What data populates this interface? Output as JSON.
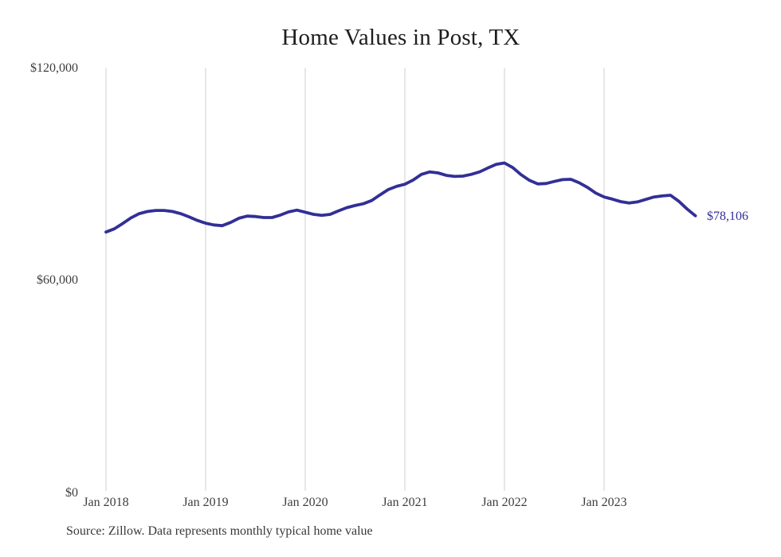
{
  "chart_data": {
    "type": "line",
    "title": "Home Values in Post, TX",
    "x": [
      "Jan 2018",
      "Feb 2018",
      "Mar 2018",
      "Apr 2018",
      "May 2018",
      "Jun 2018",
      "Jul 2018",
      "Aug 2018",
      "Sep 2018",
      "Oct 2018",
      "Nov 2018",
      "Dec 2018",
      "Jan 2019",
      "Feb 2019",
      "Mar 2019",
      "Apr 2019",
      "May 2019",
      "Jun 2019",
      "Jul 2019",
      "Aug 2019",
      "Sep 2019",
      "Oct 2019",
      "Nov 2019",
      "Dec 2019",
      "Jan 2020",
      "Feb 2020",
      "Mar 2020",
      "Apr 2020",
      "May 2020",
      "Jun 2020",
      "Jul 2020",
      "Aug 2020",
      "Sep 2020",
      "Oct 2020",
      "Nov 2020",
      "Dec 2020",
      "Jan 2021",
      "Feb 2021",
      "Mar 2021",
      "Apr 2021",
      "May 2021",
      "Jun 2021",
      "Jul 2021",
      "Aug 2021",
      "Sep 2021",
      "Oct 2021",
      "Nov 2021",
      "Dec 2021",
      "Jan 2022",
      "Feb 2022",
      "Mar 2022",
      "Apr 2022",
      "May 2022",
      "Jun 2022",
      "Jul 2022",
      "Aug 2022",
      "Sep 2022",
      "Oct 2022",
      "Nov 2022",
      "Dec 2022",
      "Jan 2023",
      "Feb 2023",
      "Mar 2023",
      "Apr 2023",
      "May 2023",
      "Jun 2023",
      "Jul 2023",
      "Aug 2023",
      "Sep 2023",
      "Oct 2023",
      "Nov 2023",
      "Dec 2023"
    ],
    "series": [
      {
        "name": "Typical home value",
        "values": [
          73500,
          74400,
          75900,
          77500,
          78700,
          79300,
          79600,
          79600,
          79300,
          78700,
          77800,
          76800,
          76000,
          75500,
          75300,
          76200,
          77400,
          78000,
          77900,
          77600,
          77600,
          78300,
          79200,
          79700,
          79100,
          78500,
          78200,
          78500,
          79500,
          80400,
          81000,
          81500,
          82400,
          84000,
          85500,
          86400,
          87000,
          88200,
          89800,
          90500,
          90200,
          89500,
          89200,
          89300,
          89800,
          90500,
          91600,
          92600,
          93000,
          91700,
          89700,
          88100,
          87100,
          87200,
          87800,
          88300,
          88400,
          87400,
          86100,
          84500,
          83400,
          82800,
          82100,
          81700,
          82000,
          82700,
          83400,
          83700,
          83900,
          82200,
          80000,
          78106
        ]
      }
    ],
    "x_tick_labels": [
      "Jan 2018",
      "Jan 2019",
      "Jan 2020",
      "Jan 2021",
      "Jan 2022",
      "Jan 2023"
    ],
    "y_ticks": [
      {
        "label": "$0",
        "value": 0
      },
      {
        "label": "$60,000",
        "value": 60000
      },
      {
        "label": "$120,000",
        "value": 120000
      }
    ],
    "ylim": [
      0,
      120000
    ],
    "grid": "vertical-year-lines",
    "legend": "none",
    "end_label": "$78,106",
    "line_color": "#322f96",
    "gridline_color": "#cfcfcf",
    "source_note": "Source: Zillow. Data represents monthly typical home value"
  }
}
